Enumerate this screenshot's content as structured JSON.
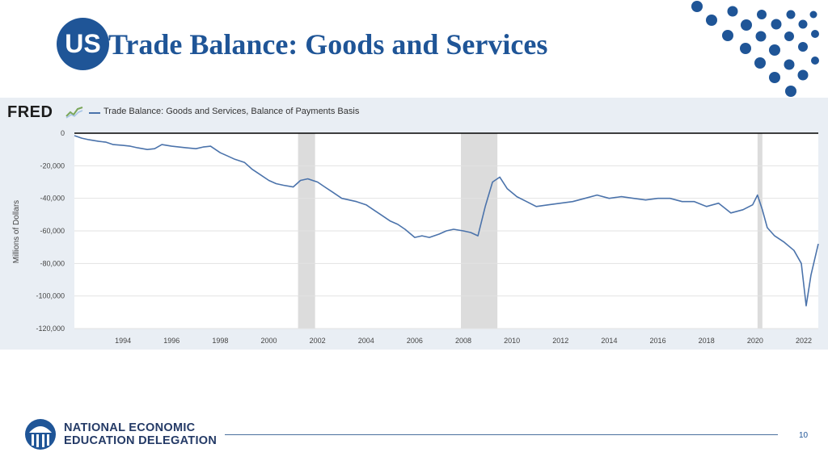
{
  "slide": {
    "badge": "US",
    "title": "Trade Balance: Goods and Services",
    "page_number": "10",
    "org_line1": "NATIONAL ECONOMIC",
    "org_line2": "EDUCATION DELEGATION",
    "accent_color": "#1f5597"
  },
  "chart_data": {
    "type": "line",
    "source_logo": "FRED",
    "title": "",
    "legend": [
      "Trade Balance: Goods and Services, Balance of Payments Basis"
    ],
    "xlabel": "",
    "ylabel": "Millions of Dollars",
    "ylim": [
      -120000,
      0
    ],
    "xlim": [
      1992.0,
      2022.6
    ],
    "x_ticks": [
      "1994",
      "1996",
      "1998",
      "2000",
      "2002",
      "2004",
      "2006",
      "2008",
      "2010",
      "2012",
      "2014",
      "2016",
      "2018",
      "2020",
      "2022"
    ],
    "y_ticks": [
      "0",
      "-20,000",
      "-40,000",
      "-60,000",
      "-80,000",
      "-100,000",
      "-120,000"
    ],
    "grid": true,
    "recessions": [
      {
        "start": 2001.2,
        "end": 2001.9
      },
      {
        "start": 2007.9,
        "end": 2009.4
      },
      {
        "start": 2020.1,
        "end": 2020.3
      }
    ],
    "series": [
      {
        "name": "Trade Balance: Goods and Services, Balance of Payments Basis",
        "color": "#4b73ab",
        "x": [
          1992.0,
          1992.3,
          1992.6,
          1993.0,
          1993.3,
          1993.6,
          1994.0,
          1994.3,
          1994.6,
          1995.0,
          1995.3,
          1995.6,
          1996.0,
          1996.3,
          1996.6,
          1997.0,
          1997.3,
          1997.6,
          1998.0,
          1998.3,
          1998.6,
          1999.0,
          1999.3,
          1999.6,
          2000.0,
          2000.3,
          2000.6,
          2001.0,
          2001.3,
          2001.6,
          2002.0,
          2002.3,
          2002.6,
          2003.0,
          2003.3,
          2003.6,
          2004.0,
          2004.3,
          2004.6,
          2005.0,
          2005.3,
          2005.6,
          2006.0,
          2006.3,
          2006.6,
          2007.0,
          2007.3,
          2007.6,
          2008.0,
          2008.3,
          2008.6,
          2008.9,
          2009.2,
          2009.5,
          2009.8,
          2010.2,
          2010.6,
          2011.0,
          2011.5,
          2012.0,
          2012.5,
          2013.0,
          2013.5,
          2014.0,
          2014.5,
          2015.0,
          2015.5,
          2016.0,
          2016.5,
          2017.0,
          2017.5,
          2018.0,
          2018.5,
          2019.0,
          2019.5,
          2019.9,
          2020.1,
          2020.3,
          2020.5,
          2020.8,
          2021.2,
          2021.6,
          2021.9,
          2022.1,
          2022.3,
          2022.6
        ],
        "values": [
          -1500,
          -3000,
          -4000,
          -5000,
          -5500,
          -7000,
          -7500,
          -8000,
          -9000,
          -10000,
          -9500,
          -7000,
          -8000,
          -8500,
          -9000,
          -9500,
          -8500,
          -8000,
          -12000,
          -14000,
          -16000,
          -18000,
          -22000,
          -25000,
          -29000,
          -31000,
          -32000,
          -33000,
          -29000,
          -28000,
          -30000,
          -33000,
          -36000,
          -40000,
          -41000,
          -42000,
          -44000,
          -47000,
          -50000,
          -54000,
          -56000,
          -59000,
          -64000,
          -63000,
          -64000,
          -62000,
          -60000,
          -59000,
          -60000,
          -61000,
          -63000,
          -45000,
          -30000,
          -27000,
          -34000,
          -39000,
          -42000,
          -45000,
          -44000,
          -43000,
          -42000,
          -40000,
          -38000,
          -40000,
          -39000,
          -40000,
          -41000,
          -40000,
          -40000,
          -42000,
          -42000,
          -45000,
          -43000,
          -49000,
          -47000,
          -44000,
          -38000,
          -47000,
          -58000,
          -63000,
          -67000,
          -72000,
          -80000,
          -106000,
          -87000,
          -68000
        ]
      }
    ]
  }
}
